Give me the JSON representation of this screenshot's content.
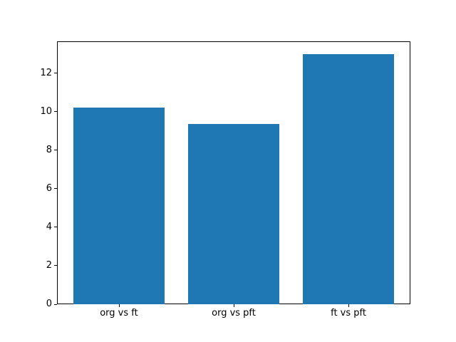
{
  "figure": {
    "background": "#ffffff",
    "text_color": "#000000"
  },
  "chart_data": {
    "type": "bar",
    "title": "",
    "xlabel": "",
    "ylabel": "",
    "categories": [
      "org vs ft",
      "org vs pft",
      "ft vs pft"
    ],
    "values": [
      10.2,
      9.35,
      13.0
    ],
    "yticks": [
      0,
      2,
      4,
      6,
      8,
      10,
      12
    ],
    "ytick_labels": [
      "0",
      "2",
      "4",
      "6",
      "8",
      "10",
      "12"
    ],
    "ylim": [
      0,
      13.65
    ],
    "xlim": [
      -0.54,
      2.54
    ],
    "bar_width": 0.8,
    "bar_color": "#1f77b4",
    "axis_color": "#000000",
    "grid": false,
    "legend": null
  }
}
